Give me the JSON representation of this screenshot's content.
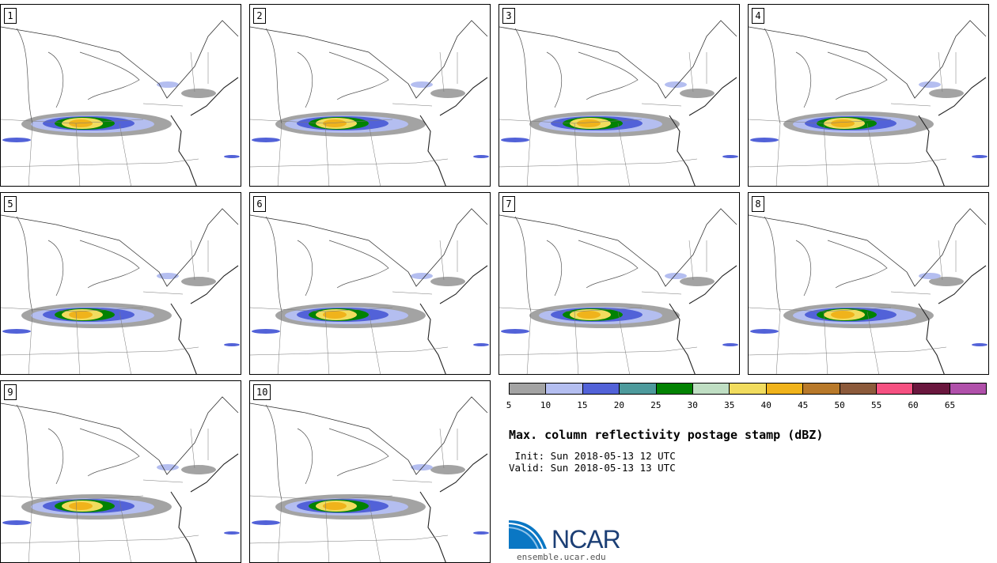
{
  "panels": [
    {
      "label": "1"
    },
    {
      "label": "2"
    },
    {
      "label": "3"
    },
    {
      "label": "4"
    },
    {
      "label": "5"
    },
    {
      "label": "6"
    },
    {
      "label": "7"
    },
    {
      "label": "8"
    },
    {
      "label": "9"
    },
    {
      "label": "10"
    }
  ],
  "colorbar": {
    "colors": [
      "#a3a3a3",
      "#b4bef0",
      "#5262d8",
      "#4d9a9c",
      "#028202",
      "#bfdec3",
      "#f1dc5e",
      "#f0b31b",
      "#b8792a",
      "#8c5a3b",
      "#f55181",
      "#6a173e",
      "#b050aa"
    ],
    "ticks": [
      "5",
      "10",
      "15",
      "20",
      "25",
      "30",
      "35",
      "40",
      "45",
      "50",
      "55",
      "60",
      "65"
    ]
  },
  "info": {
    "title": "Max. column reflectivity postage stamp (dBZ)",
    "init": " Init: Sun 2018-05-13 12 UTC",
    "valid": "Valid: Sun 2018-05-13 13 UTC"
  },
  "logo": {
    "text": "NCAR",
    "site": "ensemble.ucar.edu"
  }
}
